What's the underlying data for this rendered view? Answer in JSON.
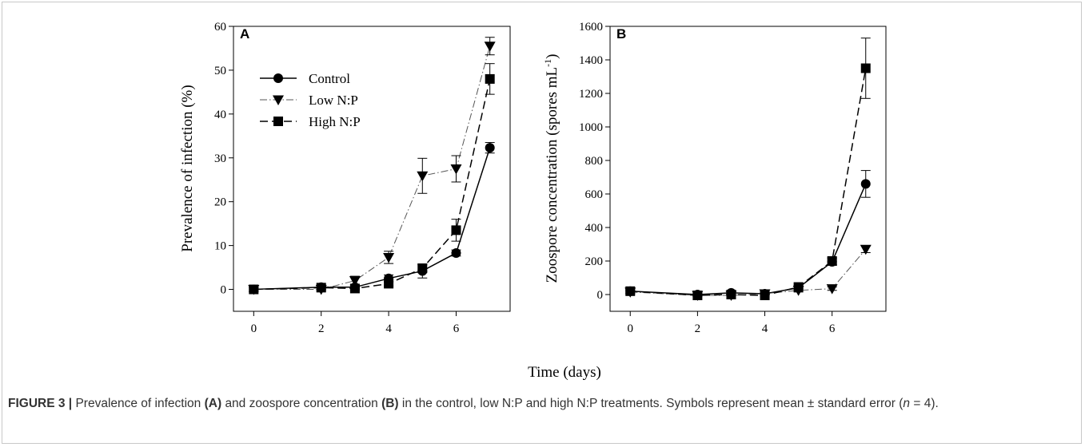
{
  "figure": {
    "xlabel": "Time (days)",
    "caption": {
      "label": "FIGURE 3 |",
      "part1": "Prevalence of infection",
      "ref_a": "(A)",
      "part2": "and zoospore concentration",
      "ref_b": "(B)",
      "part3": "in the control, low N:P and high N:P treatments. Symbols represent mean ± standard error (",
      "n": "n",
      "part4": " = 4)."
    }
  },
  "legend": [
    "Control",
    "Low N:P",
    "High N:P"
  ],
  "chart_data": [
    {
      "type": "line",
      "panel": "A",
      "xlabel": "",
      "ylabel": "Prevalence of infection (%)",
      "xlim": [
        -0.6,
        7.6
      ],
      "ylim": [
        -5,
        60
      ],
      "xticks": [
        0,
        2,
        4,
        6
      ],
      "yticks": [
        0,
        10,
        20,
        30,
        40,
        50,
        60
      ],
      "x": [
        0,
        2,
        3,
        4,
        5,
        6,
        7
      ],
      "series": [
        {
          "name": "Control",
          "marker": "circle",
          "dash": "solid",
          "values": [
            0,
            0.5,
            0.5,
            2.5,
            4.2,
            8.3,
            32.3
          ],
          "err": [
            0.5,
            0.5,
            0.4,
            0.8,
            1.6,
            0.7,
            1.2
          ]
        },
        {
          "name": "Low N:P",
          "marker": "triangle-down",
          "dash": "dash-dot",
          "values": [
            0,
            0,
            2.0,
            7.3,
            25.9,
            27.5,
            55.5
          ],
          "err": [
            0.5,
            0.3,
            1.0,
            1.4,
            4.0,
            3.0,
            2.0
          ]
        },
        {
          "name": "High N:P",
          "marker": "square",
          "dash": "dashed",
          "values": [
            0,
            0.4,
            0.2,
            1.3,
            4.8,
            13.5,
            48.0
          ],
          "err": [
            0.4,
            0.4,
            0.3,
            0.5,
            0.8,
            2.5,
            3.5
          ]
        }
      ]
    },
    {
      "type": "line",
      "panel": "B",
      "xlabel": "",
      "ylabel_main": "Zoospore concentration (spores mL",
      "ylabel_sup": "-1",
      "ylabel_end": ")",
      "xlim": [
        -0.6,
        7.6
      ],
      "ylim": [
        -100,
        1600
      ],
      "xticks": [
        0,
        2,
        4,
        6
      ],
      "yticks": [
        0,
        200,
        400,
        600,
        800,
        1000,
        1200,
        1400,
        1600
      ],
      "x": [
        0,
        2,
        3,
        4,
        5,
        6,
        7
      ],
      "series": [
        {
          "name": "Control",
          "marker": "circle",
          "dash": "solid",
          "values": [
            20,
            0,
            10,
            5,
            40,
            195,
            660
          ],
          "err": [
            15,
            5,
            10,
            10,
            10,
            20,
            80
          ]
        },
        {
          "name": "Low N:P",
          "marker": "triangle-down",
          "dash": "dash-dot",
          "values": [
            15,
            -5,
            -5,
            5,
            25,
            35,
            270
          ],
          "err": [
            10,
            5,
            5,
            5,
            10,
            10,
            20
          ]
        },
        {
          "name": "High N:P",
          "marker": "square",
          "dash": "dashed",
          "values": [
            20,
            -5,
            0,
            -5,
            45,
            200,
            1350
          ],
          "err": [
            10,
            5,
            5,
            5,
            10,
            20,
            180
          ]
        }
      ]
    }
  ]
}
